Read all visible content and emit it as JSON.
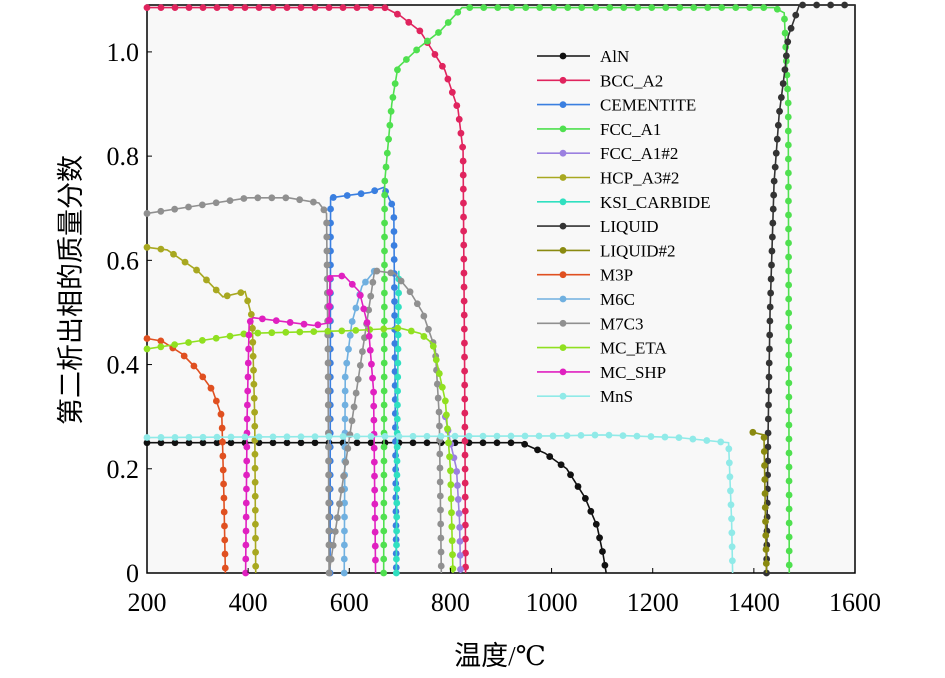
{
  "chart_data": {
    "type": "line",
    "title": "",
    "xlabel": "温度/℃",
    "ylabel": "第二析出相的质量分数",
    "xlim": [
      200,
      1600
    ],
    "ylim": [
      0,
      1.09
    ],
    "xticks": [
      "200",
      "400",
      "600",
      "800",
      "1000",
      "1200",
      "1400",
      "1600"
    ],
    "yticks": [
      "0",
      "0.2",
      "0.4",
      "0.6",
      "0.8",
      "1.0"
    ],
    "legend_position": "top-right",
    "grid": false,
    "series": [
      {
        "name": "AlN",
        "color": "#111111",
        "points": [
          [
            200,
            0.25
          ],
          [
            400,
            0.25
          ],
          [
            600,
            0.25
          ],
          [
            800,
            0.25
          ],
          [
            940,
            0.25
          ],
          [
            987,
            0.23
          ],
          [
            1030,
            0.2
          ],
          [
            1066,
            0.145
          ],
          [
            1090,
            0.09
          ],
          [
            1102,
            0.035
          ],
          [
            1108,
            0
          ]
        ]
      },
      {
        "name": "BCC_A2",
        "color": "#e0245e",
        "points": [
          [
            200,
            1.085
          ],
          [
            670,
            1.085
          ],
          [
            700,
            1.07
          ],
          [
            740,
            1.04
          ],
          [
            789,
            0.965
          ],
          [
            815,
            0.89
          ],
          [
            825,
            0.81
          ],
          [
            828,
            0.4
          ],
          [
            830,
            0
          ]
        ]
      },
      {
        "name": "CEMENTITE",
        "color": "#3a7fe0",
        "points": [
          [
            562,
            0
          ],
          [
            563,
            0.72
          ],
          [
            600,
            0.725
          ],
          [
            640,
            0.73
          ],
          [
            668,
            0.74
          ],
          [
            688,
            0.7
          ],
          [
            690,
            0.45
          ],
          [
            693,
            0
          ]
        ]
      },
      {
        "name": "FCC_A1",
        "color": "#4fe04f",
        "points": [
          [
            668,
            0
          ],
          [
            670,
            0.75
          ],
          [
            684,
            0.9
          ],
          [
            696,
            0.97
          ],
          [
            740,
            1.01
          ],
          [
            780,
            1.04
          ],
          [
            823,
            1.085
          ],
          [
            1100,
            1.085
          ],
          [
            1440,
            1.085
          ],
          [
            1460,
            1.075
          ],
          [
            1468,
            0.9
          ],
          [
            1470,
            0
          ]
        ]
      },
      {
        "name": "FCC_A1#2",
        "color": "#9b80e0",
        "points": [
          [
            790,
            0.3
          ],
          [
            800,
            0.25
          ],
          [
            812,
            0.2
          ],
          [
            818,
            0.1
          ],
          [
            820,
            0
          ]
        ]
      },
      {
        "name": "HCP_A3#2",
        "color": "#a8a820",
        "points": [
          [
            200,
            0.625
          ],
          [
            240,
            0.62
          ],
          [
            300,
            0.58
          ],
          [
            350,
            0.53
          ],
          [
            394,
            0.54
          ],
          [
            408,
            0.49
          ],
          [
            413,
            0.3
          ],
          [
            415,
            0
          ]
        ]
      },
      {
        "name": "KSI_CARBIDE",
        "color": "#30e0c0",
        "points": [
          [
            693,
            0
          ],
          [
            695,
            0.3
          ],
          [
            698,
            0.58
          ]
        ]
      },
      {
        "name": "LIQUID",
        "color": "#333333",
        "points": [
          [
            1425,
            0
          ],
          [
            1428,
            0.26
          ],
          [
            1432,
            0.5
          ],
          [
            1440,
            0.75
          ],
          [
            1450,
            0.88
          ],
          [
            1462,
            0.97
          ],
          [
            1468,
            1.03
          ],
          [
            1490,
            1.09
          ],
          [
            1600,
            1.09
          ]
        ]
      },
      {
        "name": "LIQUID#2",
        "color": "#8a8a10",
        "points": [
          [
            1398,
            0.27
          ],
          [
            1420,
            0.265
          ],
          [
            1423,
            0.1
          ],
          [
            1425,
            0
          ]
        ]
      },
      {
        "name": "M3P",
        "color": "#e05020",
        "points": [
          [
            200,
            0.45
          ],
          [
            230,
            0.445
          ],
          [
            270,
            0.42
          ],
          [
            300,
            0.39
          ],
          [
            330,
            0.35
          ],
          [
            348,
            0.3
          ],
          [
            352,
            0.15
          ],
          [
            355,
            0
          ]
        ]
      },
      {
        "name": "M6C",
        "color": "#70b0e0",
        "points": [
          [
            590,
            0
          ],
          [
            592,
            0.38
          ],
          [
            605,
            0.48
          ],
          [
            625,
            0.55
          ],
          [
            650,
            0.58
          ]
        ]
      },
      {
        "name": "M7C3",
        "color": "#909090",
        "points": [
          [
            200,
            0.69
          ],
          [
            300,
            0.705
          ],
          [
            400,
            0.72
          ],
          [
            480,
            0.72
          ],
          [
            540,
            0.71
          ],
          [
            555,
            0.69
          ],
          [
            558,
            0.4
          ],
          [
            560,
            0
          ],
          [
            650,
            0.58
          ],
          [
            690,
            0.575
          ],
          [
            720,
            0.54
          ],
          [
            745,
            0.5
          ],
          [
            770,
            0.43
          ],
          [
            778,
            0.3
          ],
          [
            782,
            0
          ]
        ]
      },
      {
        "name": "MC_ETA",
        "color": "#90e020",
        "points": [
          [
            200,
            0.43
          ],
          [
            300,
            0.445
          ],
          [
            400,
            0.46
          ],
          [
            600,
            0.465
          ],
          [
            700,
            0.47
          ],
          [
            740,
            0.46
          ],
          [
            765,
            0.44
          ],
          [
            790,
            0.33
          ],
          [
            800,
            0.2
          ],
          [
            805,
            0
          ]
        ]
      },
      {
        "name": "MC_SHP",
        "color": "#e020c0",
        "points": [
          [
            395,
            0
          ],
          [
            398,
            0.3
          ],
          [
            402,
            0.48
          ],
          [
            410,
            0.49
          ],
          [
            530,
            0.475
          ],
          [
            560,
            0.48
          ],
          [
            562,
            0.57
          ],
          [
            590,
            0.57
          ],
          [
            620,
            0.54
          ],
          [
            638,
            0.47
          ],
          [
            648,
            0.35
          ],
          [
            652,
            0
          ]
        ]
      },
      {
        "name": "MnS",
        "color": "#90eae8",
        "points": [
          [
            200,
            0.26
          ],
          [
            600,
            0.262
          ],
          [
            1000,
            0.263
          ],
          [
            1100,
            0.265
          ],
          [
            1250,
            0.26
          ],
          [
            1350,
            0.25
          ],
          [
            1356,
            0.1
          ],
          [
            1358,
            0
          ]
        ]
      }
    ]
  }
}
